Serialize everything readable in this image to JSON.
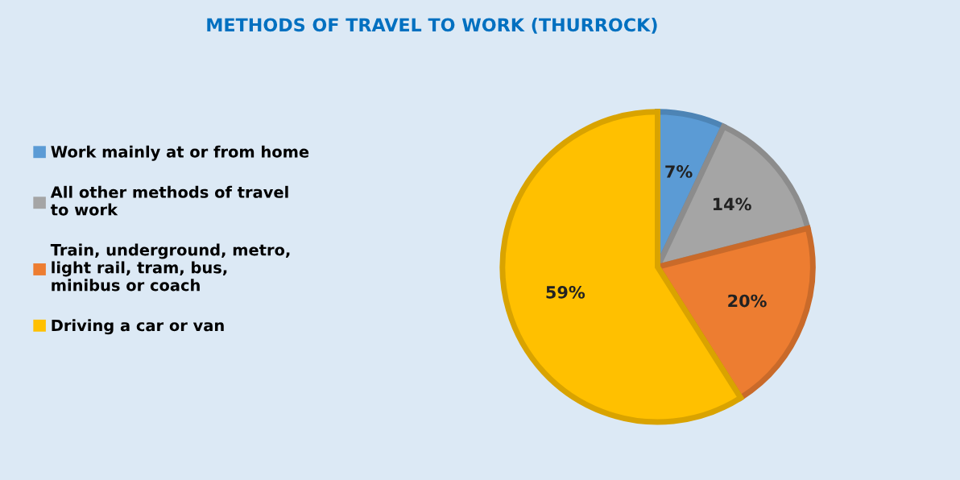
{
  "chart_data": {
    "type": "pie",
    "title": "METHODS OF TRAVEL TO WORK (THURROCK)",
    "categories": [
      "Work mainly at or from home",
      "All other methods of travel to work",
      "Train, underground, metro, light rail, tram, bus, minibus or coach",
      "Driving a car or van"
    ],
    "values": [
      7,
      14,
      20,
      59
    ],
    "colors": [
      "#5b9bd5",
      "#a5a5a5",
      "#ed7d31",
      "#ffc000"
    ],
    "value_labels": [
      "7%",
      "14%",
      "20%",
      "59%"
    ],
    "legend": "left"
  }
}
